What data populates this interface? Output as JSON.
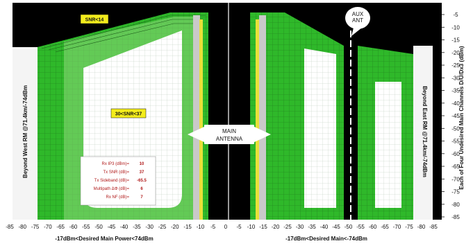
{
  "chart_data": {
    "type": "area",
    "x_ticks_left": [
      "-85",
      "-80",
      "-75",
      "-70",
      "-65",
      "-60",
      "-55",
      "-50",
      "-45",
      "-40",
      "-35",
      "-30",
      "-25",
      "-20",
      "-15",
      "-10",
      "-5",
      "0"
    ],
    "x_ticks_right": [
      "-5",
      "-10",
      "-15",
      "-20",
      "-25",
      "-30",
      "-35",
      "-40",
      "-45",
      "-50",
      "-55",
      "-60",
      "-65",
      "-70",
      "-75",
      "-80",
      "-85"
    ],
    "y_ticks": [
      "-5",
      "-10",
      "-15",
      "-20",
      "-25",
      "-30",
      "-35",
      "-40",
      "-45",
      "-50",
      "-55",
      "-60",
      "-65",
      "-70",
      "-75",
      "-80",
      "-85"
    ],
    "xlabel_left": "-17dBm<Desired Main Power<74dBm",
    "xlabel_right": "-17dBm<Desired Main<-74dBm",
    "ylabel_left": "Beyond West RM @71.4km/-74dBm",
    "ylabel_inner_right": "Beyond East RM @71.4km/-74dBm",
    "ylabel_right": "Each of Four Undesired Main Channels D/U/Dx3 (dBm)",
    "annotations": {
      "snr_label": "SNR<14",
      "mid_label": "30<SNR<37",
      "main_antenna": [
        "MAIN",
        "ANTENNA"
      ],
      "aux_antenna": [
        "AUX",
        "ANT"
      ]
    },
    "legend": [
      {
        "label": "Rx IP3 (dBm)=",
        "value": "10"
      },
      {
        "label": "Tx SNR (dB)=",
        "value": "37"
      },
      {
        "label": "Tx Sideband (dB)=",
        "value": "-65.5"
      },
      {
        "label": "Multipath ΔΦ (dB)=",
        "value": "6"
      },
      {
        "label": "Rx NF (dB)=",
        "value": "7"
      }
    ],
    "colors": {
      "background": "#000000",
      "region_green": "#2fb82a",
      "region_light": "#8ed87a",
      "interior": "#ffffff",
      "label_yellow": "#f3ec1c",
      "legend_text": "#b01818"
    }
  }
}
